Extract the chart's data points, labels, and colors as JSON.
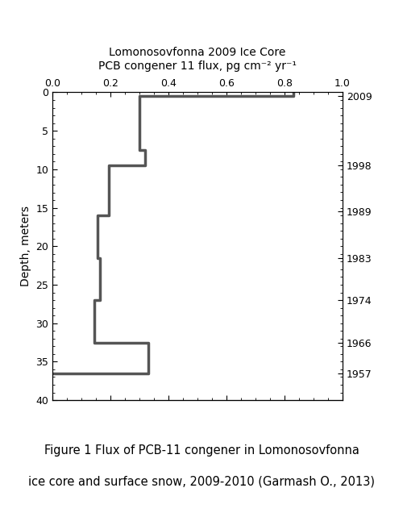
{
  "title_line1": "Lomonosovfonna 2009 Ice Core",
  "title_line2": "PCB congener 11 flux, pg cm⁻² yr⁻¹",
  "ylabel": "Depth, meters",
  "xlim": [
    0.0,
    1.0
  ],
  "ylim": [
    40,
    0
  ],
  "xticks": [
    0.0,
    0.2,
    0.4,
    0.6,
    0.8,
    1.0
  ],
  "yticks": [
    0,
    5,
    10,
    15,
    20,
    25,
    30,
    35,
    40
  ],
  "caption_line1": "Figure 1 Flux of PCB-11 congener in Lomonosovfonna",
  "caption_line2": "ice core and surface snow, 2009-2010 (Garmash O., 2013)",
  "right_axis_labels": [
    {
      "year": "2009",
      "depth": 0.5
    },
    {
      "year": "1998",
      "depth": 9.5
    },
    {
      "year": "1989",
      "depth": 15.5
    },
    {
      "year": "1983",
      "depth": 21.5
    },
    {
      "year": "1974",
      "depth": 27.0
    },
    {
      "year": "1966",
      "depth": 32.5
    },
    {
      "year": "1957",
      "depth": 36.5
    }
  ],
  "step_x": [
    0.83,
    0.83,
    0.3,
    0.3,
    0.32,
    0.32,
    0.195,
    0.195,
    0.155,
    0.155,
    0.165,
    0.165,
    0.145,
    0.145,
    0.33,
    0.33,
    0.0
  ],
  "step_y": [
    0.0,
    0.5,
    0.5,
    7.5,
    7.5,
    9.5,
    9.5,
    16.0,
    16.0,
    21.5,
    21.5,
    27.0,
    27.0,
    32.5,
    32.5,
    36.5,
    36.5
  ],
  "line_color": "#555555",
  "line_width": 2.5,
  "background_color": "#ffffff",
  "title_fontsize": 10,
  "axis_fontsize": 10,
  "tick_fontsize": 9,
  "caption_fontsize": 10.5
}
